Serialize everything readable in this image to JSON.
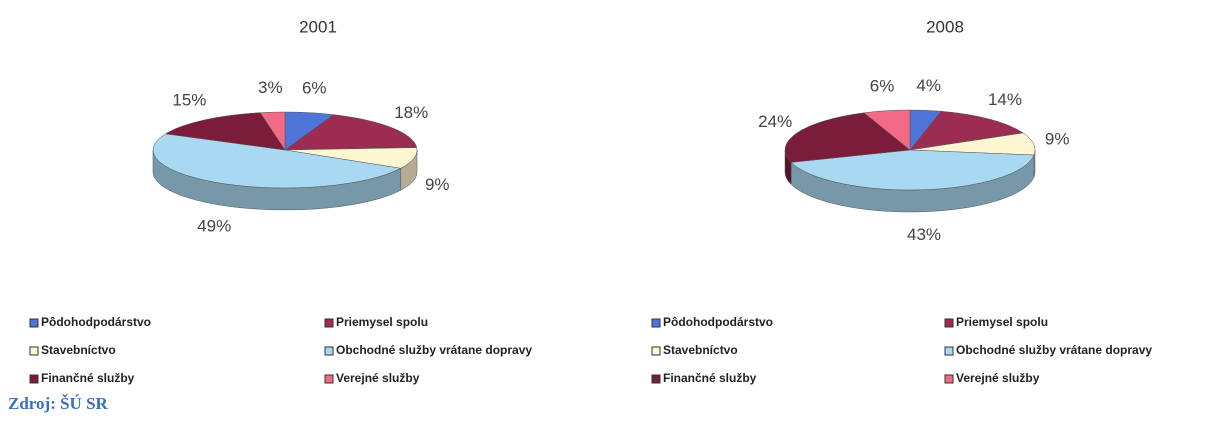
{
  "chart_data": [
    {
      "type": "pie",
      "title": "2001",
      "categories": [
        "Pôdohodpodárstvo",
        "Priemysel spolu",
        "Stavebníctvo",
        "Obchodné služby vrátane dopravy",
        "Finančné služby",
        "Verejné služby"
      ],
      "values": [
        6,
        18,
        9,
        49,
        15,
        3
      ],
      "value_labels": [
        "6%",
        "18%",
        "9%",
        "49%",
        "15%",
        "3%"
      ],
      "colors": [
        "#4f74d8",
        "#9b2c52",
        "#fff6d2",
        "#a9d9f2",
        "#7a1c3a",
        "#f26a86"
      ]
    },
    {
      "type": "pie",
      "title": "2008",
      "categories": [
        "Pôdohodpodárstvo",
        "Priemysel spolu",
        "Stavebníctvo",
        "Obchodné služby vrátane dopravy",
        "Finančné služby",
        "Verejné služby"
      ],
      "values": [
        4,
        14,
        9,
        43,
        24,
        6
      ],
      "value_labels": [
        "4%",
        "14%",
        "9%",
        "43%",
        "24%",
        "6%"
      ],
      "colors": [
        "#4f74d8",
        "#9b2c52",
        "#fff6d2",
        "#a9d9f2",
        "#7a1c3a",
        "#f26a86"
      ]
    }
  ],
  "source": "Zdroj: ŠÚ SR"
}
